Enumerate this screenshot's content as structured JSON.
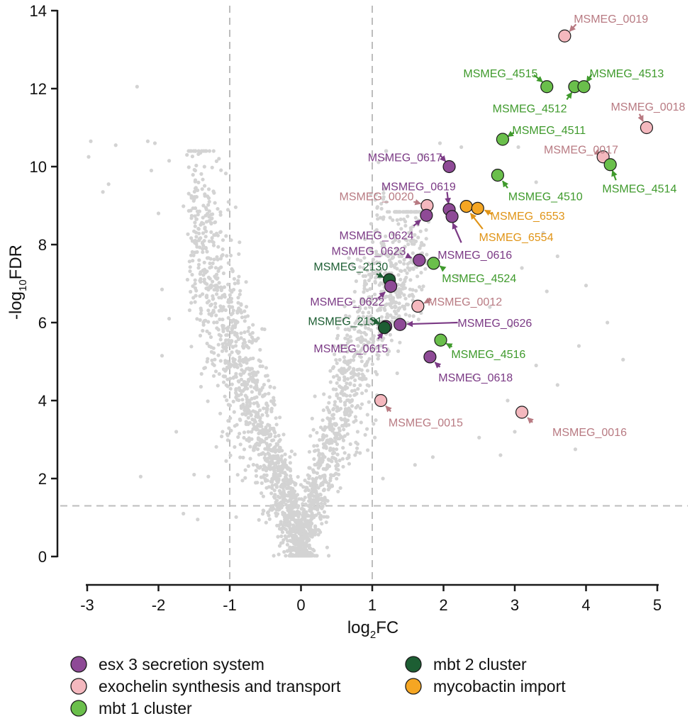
{
  "chart_data": {
    "type": "scatter",
    "title": "",
    "xlabel": {
      "base": "log",
      "sub": "2",
      "rest": "FC"
    },
    "ylabel": {
      "pre": "-log",
      "sub": "10",
      "rest": "FDR"
    },
    "xlim": [
      -3,
      5
    ],
    "ylim": [
      0,
      14
    ],
    "xticks": [
      "-3",
      "-2",
      "-1",
      "0",
      "1",
      "2",
      "3",
      "4",
      "5"
    ],
    "yticks": [
      "0",
      "2",
      "4",
      "6",
      "8",
      "10",
      "12",
      "14"
    ],
    "thresholds": {
      "x": [
        -1,
        1
      ],
      "y": 1.3
    },
    "background": {
      "color": "#d3d3d3",
      "description": "all genes (grey)"
    },
    "groups": [
      {
        "name": "esx 3 secretion system",
        "color": "#8e4a96",
        "label_color": "#7b3a85"
      },
      {
        "name": "exochelin synthesis and transport",
        "color": "#f4b8be",
        "label_color": "#b87a82"
      },
      {
        "name": "mbt 1 cluster",
        "color": "#6abf4b",
        "label_color": "#3f9a2c"
      },
      {
        "name": "mbt 2 cluster",
        "color": "#1d5e33",
        "label_color": "#1d5e33"
      },
      {
        "name": "mycobactin import",
        "color": "#f5a623",
        "label_color": "#e09417"
      }
    ],
    "points": [
      {
        "gene": "MSMEG_0019",
        "x": 3.7,
        "y": 13.35,
        "group": 1
      },
      {
        "gene": "MSMEG_4515",
        "x": 3.45,
        "y": 12.05,
        "group": 2
      },
      {
        "gene": "MSMEG_4512",
        "x": 3.84,
        "y": 12.05,
        "group": 2
      },
      {
        "gene": "MSMEG_4513",
        "x": 3.97,
        "y": 12.05,
        "group": 2
      },
      {
        "gene": "MSMEG_0018",
        "x": 4.85,
        "y": 11.0,
        "group": 1
      },
      {
        "gene": "MSMEG_4511",
        "x": 2.83,
        "y": 10.7,
        "group": 2
      },
      {
        "gene": "MSMEG_0017",
        "x": 4.24,
        "y": 10.25,
        "group": 1
      },
      {
        "gene": "MSMEG_4514",
        "x": 4.34,
        "y": 10.05,
        "group": 2
      },
      {
        "gene": "MSMEG_0617",
        "x": 2.08,
        "y": 10.0,
        "group": 0
      },
      {
        "gene": "MSMEG_4510",
        "x": 2.76,
        "y": 9.78,
        "group": 2
      },
      {
        "gene": "MSMEG_0020",
        "x": 1.77,
        "y": 9.0,
        "group": 1
      },
      {
        "gene": "MSMEG_6553",
        "x": 2.32,
        "y": 8.98,
        "group": 4
      },
      {
        "gene": "MSMEG_6554",
        "x": 2.48,
        "y": 8.93,
        "group": 4
      },
      {
        "gene": "MSMEG_0619",
        "x": 2.08,
        "y": 8.9,
        "group": 0
      },
      {
        "gene": "MSMEG_0624",
        "x": 1.76,
        "y": 8.75,
        "group": 0
      },
      {
        "gene": "MSMEG_0616",
        "x": 2.12,
        "y": 8.72,
        "group": 0
      },
      {
        "gene": "MSMEG_0623",
        "x": 1.66,
        "y": 7.6,
        "group": 0
      },
      {
        "gene": "MSMEG_4524",
        "x": 1.86,
        "y": 7.52,
        "group": 2
      },
      {
        "gene": "MSMEG_2130",
        "x": 1.24,
        "y": 7.1,
        "group": 3
      },
      {
        "gene": "MSMEG_0622",
        "x": 1.26,
        "y": 6.93,
        "group": 0
      },
      {
        "gene": "MSMEG_0012",
        "x": 1.64,
        "y": 6.42,
        "group": 1
      },
      {
        "gene": "MSMEG_0626",
        "x": 1.39,
        "y": 5.95,
        "group": 0
      },
      {
        "gene": "MSMEG_0615",
        "x": 1.19,
        "y": 5.9,
        "group": 0
      },
      {
        "gene": "MSMEG_2131",
        "x": 1.17,
        "y": 5.87,
        "group": 3
      },
      {
        "gene": "MSMEG_4516",
        "x": 1.96,
        "y": 5.55,
        "group": 2
      },
      {
        "gene": "MSMEG_0618",
        "x": 1.81,
        "y": 5.12,
        "group": 0
      },
      {
        "gene": "MSMEG_0015",
        "x": 1.12,
        "y": 4.0,
        "group": 1
      },
      {
        "gene": "MSMEG_0016",
        "x": 3.1,
        "y": 3.7,
        "group": 1
      }
    ],
    "annotations": [
      {
        "text": "MSMEG_0019",
        "group": 1,
        "tx": 4.35,
        "ty": 13.8,
        "anchor": "middle",
        "ax0": 3.86,
        "ay0": 13.65,
        "ax1": 3.77,
        "ay1": 13.47
      },
      {
        "text": "MSMEG_4515",
        "group": 2,
        "tx": 2.8,
        "ty": 12.4,
        "anchor": "middle",
        "ax0": 3.27,
        "ay0": 12.35,
        "ax1": 3.39,
        "ay1": 12.17
      },
      {
        "text": "MSMEG_4513",
        "group": 2,
        "tx": 4.57,
        "ty": 12.4,
        "anchor": "middle",
        "ax0": 4.08,
        "ay0": 12.37,
        "ax1": 4.01,
        "ay1": 12.17
      },
      {
        "text": "MSMEG_4512",
        "group": 2,
        "tx": 3.21,
        "ty": 11.5,
        "anchor": "middle",
        "ax0": 3.73,
        "ay0": 11.72,
        "ax1": 3.8,
        "ay1": 11.9
      },
      {
        "text": "MSMEG_0018",
        "group": 1,
        "tx": 4.87,
        "ty": 11.55,
        "anchor": "middle",
        "ax0": 4.75,
        "ay0": 11.35,
        "ax1": 4.8,
        "ay1": 11.16
      },
      {
        "text": "MSMEG_4511",
        "group": 2,
        "tx": 3.48,
        "ty": 10.95,
        "anchor": "middle",
        "ax0": 2.98,
        "ay0": 10.87,
        "ax1": 2.9,
        "ay1": 10.77
      },
      {
        "text": "MSMEG_0017",
        "group": 1,
        "tx": 3.93,
        "ty": 10.45,
        "anchor": "middle",
        "ax0": 4.16,
        "ay0": 10.35,
        "ax1": 4.2,
        "ay1": 10.3
      },
      {
        "text": "MSMEG_4514",
        "group": 2,
        "tx": 4.75,
        "ty": 9.45,
        "anchor": "middle",
        "ax0": 4.42,
        "ay0": 9.65,
        "ax1": 4.37,
        "ay1": 9.9
      },
      {
        "text": "MSMEG_0617",
        "group": 0,
        "tx": 1.46,
        "ty": 10.25,
        "anchor": "middle",
        "ax0": 1.95,
        "ay0": 10.3,
        "ax1": 2.03,
        "ay1": 10.13
      },
      {
        "text": "MSMEG_4510",
        "group": 2,
        "tx": 3.43,
        "ty": 9.25,
        "anchor": "middle",
        "ax0": 2.9,
        "ay0": 9.45,
        "ax1": 2.83,
        "ay1": 9.63
      },
      {
        "text": "MSMEG_0619",
        "group": 0,
        "tx": 1.65,
        "ty": 9.5,
        "anchor": "middle",
        "ax0": 2.05,
        "ay0": 9.35,
        "ax1": 2.07,
        "ay1": 9.05
      },
      {
        "text": "MSMEG_0020",
        "group": 1,
        "tx": 1.06,
        "ty": 9.25,
        "anchor": "middle",
        "ax0": 1.58,
        "ay0": 9.1,
        "ax1": 1.68,
        "ay1": 9.05
      },
      {
        "text": "MSMEG_6553",
        "group": 4,
        "tx": 3.18,
        "ty": 8.75,
        "anchor": "middle",
        "ax0": 2.68,
        "ay0": 8.78,
        "ax1": 2.58,
        "ay1": 8.88
      },
      {
        "text": "MSMEG_6554",
        "group": 4,
        "tx": 3.02,
        "ty": 8.2,
        "anchor": "middle",
        "ax0": 2.55,
        "ay0": 8.4,
        "ax1": 2.38,
        "ay1": 8.8
      },
      {
        "text": "MSMEG_0624",
        "group": 0,
        "tx": 1.06,
        "ty": 8.25,
        "anchor": "middle",
        "ax0": 1.58,
        "ay0": 8.48,
        "ax1": 1.68,
        "ay1": 8.63
      },
      {
        "text": "MSMEG_0616",
        "group": 0,
        "tx": 2.44,
        "ty": 7.75,
        "anchor": "middle",
        "ax0": 2.25,
        "ay0": 8.05,
        "ax1": 2.13,
        "ay1": 8.55
      },
      {
        "text": "MSMEG_0623",
        "group": 0,
        "tx": 0.95,
        "ty": 7.85,
        "anchor": "middle",
        "ax0": 1.48,
        "ay0": 7.72,
        "ax1": 1.55,
        "ay1": 7.66
      },
      {
        "text": "MSMEG_4524",
        "group": 2,
        "tx": 2.5,
        "ty": 7.15,
        "anchor": "middle",
        "ax0": 2.0,
        "ay0": 7.38,
        "ax1": 1.95,
        "ay1": 7.45
      },
      {
        "text": "MSMEG_2130",
        "group": 3,
        "tx": 0.7,
        "ty": 7.45,
        "anchor": "middle",
        "ax0": 1.06,
        "ay0": 7.25,
        "ax1": 1.16,
        "ay1": 7.16
      },
      {
        "text": "MSMEG_0622",
        "group": 0,
        "tx": 0.65,
        "ty": 6.55,
        "anchor": "middle",
        "ax0": 1.08,
        "ay0": 6.62,
        "ax1": 1.18,
        "ay1": 6.78
      },
      {
        "text": "MSMEG_0012",
        "group": 1,
        "tx": 2.3,
        "ty": 6.55,
        "anchor": "middle",
        "ax0": 1.83,
        "ay0": 6.6,
        "ax1": 1.73,
        "ay1": 6.5
      },
      {
        "text": "MSMEG_0626",
        "group": 0,
        "tx": 2.72,
        "ty": 6.0,
        "anchor": "middle",
        "ax0": 2.2,
        "ay0": 6.0,
        "ax1": 1.49,
        "ay1": 5.96
      },
      {
        "text": "MSMEG_2131",
        "group": 3,
        "tx": 0.62,
        "ty": 6.05,
        "anchor": "middle",
        "ax0": 0.97,
        "ay0": 6.1,
        "ax1": 1.1,
        "ay1": 5.97
      },
      {
        "text": "MSMEG_0615",
        "group": 0,
        "tx": 0.7,
        "ty": 5.35,
        "anchor": "middle",
        "ax0": 1.08,
        "ay0": 5.58,
        "ax1": 1.15,
        "ay1": 5.74
      },
      {
        "text": "MSMEG_4516",
        "group": 2,
        "tx": 2.63,
        "ty": 5.2,
        "anchor": "middle",
        "ax0": 2.12,
        "ay0": 5.38,
        "ax1": 2.04,
        "ay1": 5.46
      },
      {
        "text": "MSMEG_0618",
        "group": 0,
        "tx": 2.45,
        "ty": 4.6,
        "anchor": "middle",
        "ax0": 1.95,
        "ay0": 4.86,
        "ax1": 1.88,
        "ay1": 4.98
      },
      {
        "text": "MSMEG_0015",
        "group": 1,
        "tx": 1.75,
        "ty": 3.45,
        "anchor": "middle",
        "ax0": 1.26,
        "ay0": 3.72,
        "ax1": 1.19,
        "ay1": 3.86
      },
      {
        "text": "MSMEG_0016",
        "group": 1,
        "tx": 4.05,
        "ty": 3.2,
        "anchor": "middle",
        "ax0": 3.25,
        "ay0": 3.44,
        "ax1": 3.18,
        "ay1": 3.56
      }
    ],
    "outliers": [
      [
        -2.3,
        12.05
      ],
      [
        -2.6,
        10.55
      ],
      [
        -2.95,
        10.65
      ],
      [
        -2.15,
        10.65
      ],
      [
        -2.05,
        10.6
      ],
      [
        -2.98,
        10.25
      ],
      [
        -2.7,
        9.55
      ],
      [
        -2.78,
        9.35
      ],
      [
        -2.1,
        9.9
      ],
      [
        -1.85,
        10.15
      ],
      [
        -1.6,
        10.3
      ],
      [
        -2.0,
        8.8
      ],
      [
        -1.95,
        6.85
      ],
      [
        -1.85,
        6.1
      ],
      [
        -1.95,
        5.15
      ],
      [
        -2.25,
        2.05
      ],
      [
        -1.75,
        3.2
      ],
      [
        -1.5,
        2.1
      ],
      [
        -1.3,
        2.05
      ],
      [
        -1.1,
        3.2
      ],
      [
        -1.05,
        2.45
      ],
      [
        -1.65,
        1.1
      ],
      [
        -1.45,
        0.95
      ],
      [
        3.0,
        3.2
      ],
      [
        3.85,
        2.75
      ],
      [
        4.52,
        5.05
      ],
      [
        4.0,
        6.95
      ],
      [
        4.3,
        6.0
      ],
      [
        3.9,
        5.4
      ],
      [
        3.4,
        8.3
      ],
      [
        3.6,
        7.7
      ],
      [
        3.3,
        9.6
      ],
      [
        3.05,
        10.5
      ],
      [
        2.25,
        10.5
      ],
      [
        1.95,
        10.6
      ],
      [
        1.7,
        10.3
      ],
      [
        2.95,
        5.9
      ],
      [
        2.65,
        6.4
      ],
      [
        3.3,
        4.9
      ],
      [
        2.8,
        2.6
      ],
      [
        2.5,
        3.05
      ],
      [
        1.85,
        2.55
      ],
      [
        1.6,
        2.35
      ],
      [
        1.15,
        2.0
      ],
      [
        3.45,
        6.8
      ],
      [
        3.1,
        7.4
      ],
      [
        2.9,
        4.0
      ],
      [
        2.4,
        4.6
      ],
      [
        3.6,
        4.4
      ],
      [
        2.2,
        7.2
      ]
    ]
  },
  "legend": {
    "columns": [
      [
        {
          "label": "esx 3 secretion system",
          "color": "#8e4a96"
        },
        {
          "label": "exochelin synthesis and transport",
          "color": "#f4b8be"
        },
        {
          "label": "mbt 1 cluster",
          "color": "#6abf4b"
        }
      ],
      [
        {
          "label": "mbt 2 cluster",
          "color": "#1d5e33"
        },
        {
          "label": "mycobactin import",
          "color": "#f5a623"
        }
      ]
    ]
  }
}
